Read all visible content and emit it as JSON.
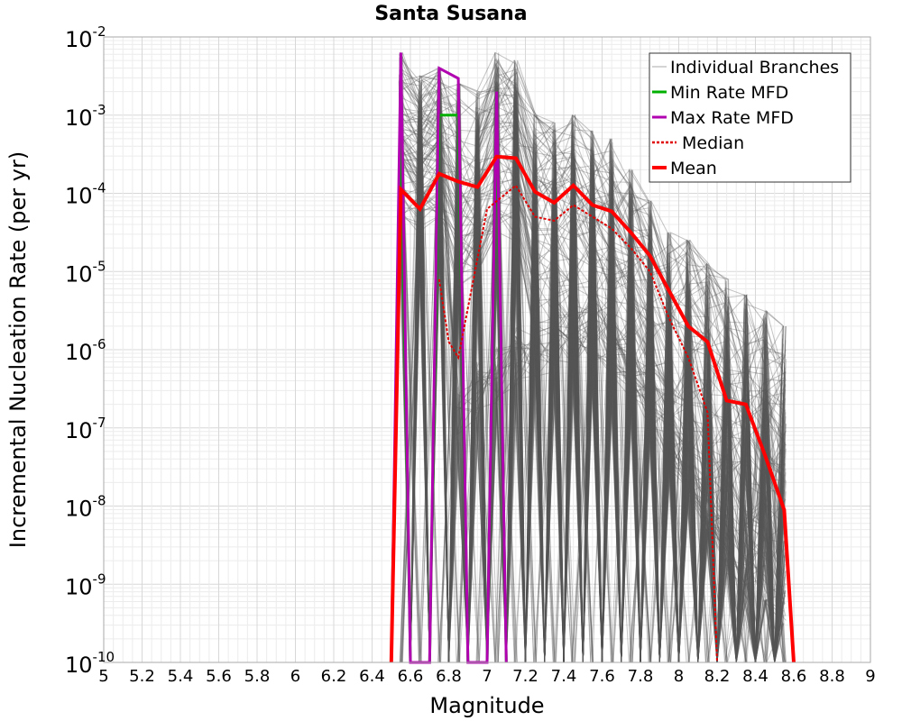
{
  "chart_data": {
    "type": "line",
    "title": "Santa Susana",
    "xlabel": "Magnitude",
    "ylabel": "Incremental Nucleation Rate (per yr)",
    "xlim": [
      5,
      9
    ],
    "ylim_log10": [
      -10,
      -2
    ],
    "y_scale": "log",
    "grid": true,
    "legend_position": "top-right",
    "x_ticks": [
      "5",
      "5.2",
      "5.4",
      "5.6",
      "5.8",
      "6",
      "6.2",
      "6.4",
      "6.6",
      "6.8",
      "7",
      "7.2",
      "7.4",
      "7.6",
      "7.8",
      "8",
      "8.2",
      "8.4",
      "8.6",
      "8.8",
      "9"
    ],
    "y_ticks": [
      {
        "base": "10",
        "exp": "-10",
        "log10": -10
      },
      {
        "base": "10",
        "exp": "-9",
        "log10": -9
      },
      {
        "base": "10",
        "exp": "-8",
        "log10": -8
      },
      {
        "base": "10",
        "exp": "-7",
        "log10": -7
      },
      {
        "base": "10",
        "exp": "-6",
        "log10": -6
      },
      {
        "base": "10",
        "exp": "-5",
        "log10": -5
      },
      {
        "base": "10",
        "exp": "-4",
        "log10": -4
      },
      {
        "base": "10",
        "exp": "-3",
        "log10": -3
      },
      {
        "base": "10",
        "exp": "-2",
        "log10": -2
      }
    ],
    "colors": {
      "branches": "#555555",
      "min_rate": "#00b000",
      "max_rate": "#b000b0",
      "median": "#e00000",
      "mean": "#ff0000",
      "grid_minor": "#ececec",
      "grid_major": "#d8d8d8"
    },
    "legend": [
      {
        "label": "Individual Branches",
        "style": "branch"
      },
      {
        "label": "Min Rate MFD",
        "style": "min"
      },
      {
        "label": "Max Rate MFD",
        "style": "max"
      },
      {
        "label": "Median",
        "style": "median"
      },
      {
        "label": "Mean",
        "style": "mean"
      }
    ],
    "series": [
      {
        "name": "Individual Branches (envelope)",
        "x": [
          6.55,
          6.65,
          6.75,
          6.85,
          6.95,
          7.05,
          7.15,
          7.25,
          7.35,
          7.45,
          7.55,
          7.65,
          7.75,
          7.85,
          7.95,
          8.05,
          8.15,
          8.25,
          8.35,
          8.45,
          8.55
        ],
        "upper_log10": [
          -2.2,
          -2.5,
          -2.4,
          -2.6,
          -2.7,
          -2.2,
          -2.3,
          -3.0,
          -3.1,
          -3.0,
          -3.2,
          -3.3,
          -3.7,
          -4.1,
          -4.5,
          -4.6,
          -4.9,
          -5.1,
          -5.3,
          -5.5,
          -5.7
        ],
        "lower_log10": [
          -4.3,
          -4.5,
          -4.3,
          -5.2,
          -5.0,
          -4.5,
          -4.6,
          -5.8,
          -5.7,
          -5.9,
          -6.0,
          -6.3,
          -6.6,
          -7.0,
          -7.5,
          -7.8,
          -8.3,
          -8.6,
          -9.0,
          -9.2,
          -9.5
        ],
        "secondary_band_log10": [
          null,
          null,
          null,
          -6.8,
          -6.5,
          -6.3,
          -6.1,
          -6.0,
          -5.9,
          -5.8,
          -5.8,
          -5.9,
          -6.1,
          -6.5,
          -7.0,
          -7.5,
          -8.0,
          -8.5,
          -9.0,
          null,
          null
        ]
      },
      {
        "name": "Min Rate MFD",
        "x": [
          6.5,
          6.55,
          6.6,
          6.65,
          6.7,
          6.75,
          6.85,
          6.9,
          6.95,
          7.0,
          7.05,
          7.1
        ],
        "log10": [
          -10,
          -3.0,
          -10,
          -10,
          -10,
          -3.0,
          -3.0,
          -10,
          -10,
          -10,
          -3.0,
          -10
        ]
      },
      {
        "name": "Max Rate MFD",
        "x": [
          6.5,
          6.55,
          6.6,
          6.65,
          6.7,
          6.75,
          6.85,
          6.9,
          6.95,
          7.0,
          7.05,
          7.1
        ],
        "log10": [
          -10,
          -2.2,
          -10,
          -10,
          -10,
          -2.4,
          -2.53,
          -10,
          -10,
          -10,
          -2.7,
          -10
        ]
      },
      {
        "name": "Median",
        "x": [
          6.75,
          6.8,
          6.85,
          7.0,
          7.05,
          7.15,
          7.25,
          7.35,
          7.45,
          7.55,
          7.65,
          7.75,
          7.85,
          7.95,
          8.05,
          8.15,
          8.2
        ],
        "log10": [
          -5.1,
          -5.9,
          -6.1,
          -4.2,
          -4.1,
          -3.9,
          -4.3,
          -4.35,
          -4.15,
          -4.3,
          -4.45,
          -4.7,
          -5.0,
          -5.6,
          -6.1,
          -6.8,
          -10
        ]
      },
      {
        "name": "Mean",
        "x": [
          6.5,
          6.55,
          6.65,
          6.75,
          6.85,
          6.95,
          7.05,
          7.15,
          7.25,
          7.35,
          7.45,
          7.55,
          7.65,
          7.75,
          7.85,
          7.95,
          8.05,
          8.15,
          8.25,
          8.35,
          8.45,
          8.55,
          8.6
        ],
        "log10": [
          -10,
          -3.95,
          -4.2,
          -3.75,
          -3.85,
          -3.92,
          -3.53,
          -3.55,
          -3.98,
          -4.12,
          -3.9,
          -4.15,
          -4.23,
          -4.5,
          -4.8,
          -5.25,
          -5.7,
          -5.9,
          -6.65,
          -6.7,
          -7.35,
          -8.05,
          -10
        ]
      }
    ]
  }
}
